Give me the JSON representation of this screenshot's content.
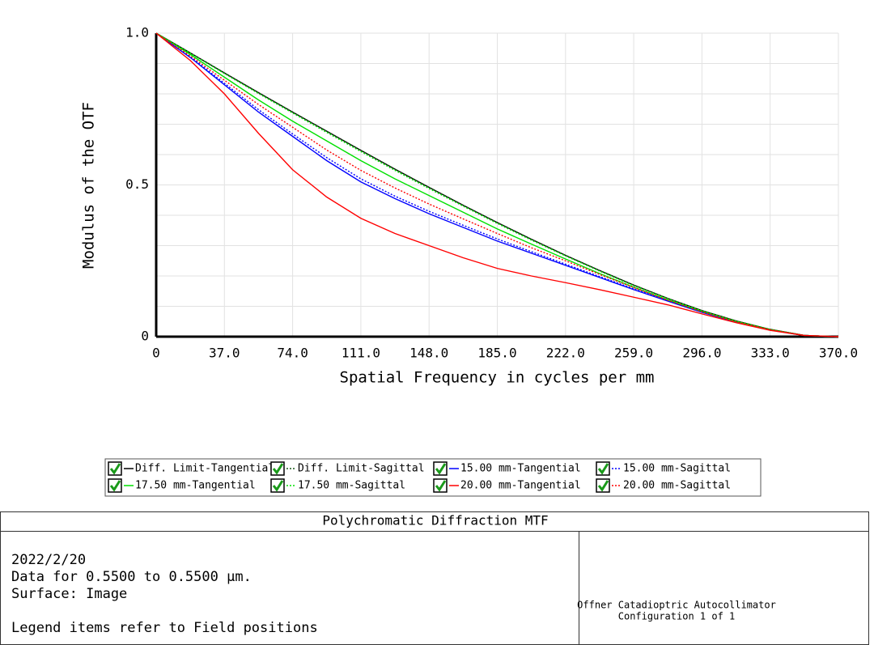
{
  "chart_data": {
    "type": "line",
    "x_label": "Spatial Frequency in cycles per mm",
    "y_label": "Modulus of the OTF",
    "x": [
      0,
      18.5,
      37,
      55.5,
      74,
      92.5,
      111,
      129.5,
      148,
      166.5,
      185,
      203.5,
      222,
      240.5,
      259,
      277.5,
      296,
      314.5,
      333,
      351.5,
      370
    ],
    "series": [
      {
        "name": "Diff. Limit-Tangential",
        "color": "#000000",
        "style": "solid",
        "values": [
          1,
          0.935,
          0.869,
          0.804,
          0.74,
          0.677,
          0.614,
          0.552,
          0.492,
          0.433,
          0.376,
          0.321,
          0.268,
          0.218,
          0.17,
          0.126,
          0.086,
          0.052,
          0.024,
          0.004,
          0
        ]
      },
      {
        "name": "Diff. Limit-Sagittal",
        "color": "#1a5a1a",
        "style": "dotted",
        "values": [
          1,
          0.935,
          0.869,
          0.804,
          0.74,
          0.677,
          0.614,
          0.552,
          0.492,
          0.433,
          0.376,
          0.321,
          0.268,
          0.218,
          0.17,
          0.126,
          0.086,
          0.052,
          0.024,
          0.004,
          0
        ]
      },
      {
        "name": "15.00 mm-Tangential",
        "color": "#0000ff",
        "style": "solid",
        "values": [
          1,
          0.92,
          0.83,
          0.74,
          0.66,
          0.58,
          0.51,
          0.455,
          0.405,
          0.36,
          0.315,
          0.275,
          0.235,
          0.195,
          0.155,
          0.117,
          0.08,
          0.048,
          0.022,
          0.004,
          0
        ]
      },
      {
        "name": "15.00 mm-Sagittal",
        "color": "#0000ff",
        "style": "dotted",
        "values": [
          1,
          0.922,
          0.835,
          0.748,
          0.668,
          0.59,
          0.52,
          0.463,
          0.413,
          0.367,
          0.322,
          0.28,
          0.239,
          0.198,
          0.158,
          0.119,
          0.081,
          0.049,
          0.022,
          0.004,
          0
        ]
      },
      {
        "name": "17.50 mm-Tangential",
        "color": "#00e000",
        "style": "solid",
        "values": [
          1,
          0.93,
          0.855,
          0.78,
          0.71,
          0.645,
          0.58,
          0.52,
          0.465,
          0.41,
          0.355,
          0.305,
          0.256,
          0.208,
          0.163,
          0.121,
          0.083,
          0.05,
          0.023,
          0.004,
          0
        ]
      },
      {
        "name": "17.50 mm-Sagittal",
        "color": "#00e000",
        "style": "dotted",
        "values": [
          1,
          0.934,
          0.867,
          0.801,
          0.737,
          0.673,
          0.61,
          0.548,
          0.488,
          0.43,
          0.373,
          0.318,
          0.266,
          0.216,
          0.168,
          0.125,
          0.085,
          0.051,
          0.024,
          0.004,
          0
        ]
      },
      {
        "name": "20.00 mm-Tangential",
        "color": "#ff0000",
        "style": "solid",
        "values": [
          1,
          0.91,
          0.8,
          0.67,
          0.55,
          0.46,
          0.39,
          0.34,
          0.3,
          0.26,
          0.225,
          0.2,
          0.178,
          0.155,
          0.13,
          0.105,
          0.075,
          0.046,
          0.021,
          0.004,
          0
        ]
      },
      {
        "name": "20.00 mm-Sagittal",
        "color": "#ff0000",
        "style": "dotted",
        "values": [
          1,
          0.925,
          0.845,
          0.765,
          0.69,
          0.615,
          0.548,
          0.49,
          0.437,
          0.388,
          0.34,
          0.293,
          0.25,
          0.205,
          0.162,
          0.12,
          0.082,
          0.049,
          0.023,
          0.004,
          0
        ]
      }
    ],
    "xlim": [
      0,
      370
    ],
    "xticks": [
      0,
      {
        "value": 37,
        "label": "37.0"
      },
      {
        "value": 74,
        "label": "74.0"
      },
      {
        "value": 111,
        "label": "111.0"
      },
      {
        "value": 148,
        "label": "148.0"
      },
      {
        "value": 185,
        "label": "185.0"
      },
      {
        "value": 222,
        "label": "222.0"
      },
      {
        "value": 259,
        "label": "259.0"
      },
      {
        "value": 296,
        "label": "296.0"
      },
      {
        "value": 333,
        "label": "333.0"
      },
      {
        "value": 370,
        "label": "370.0"
      }
    ],
    "ylim": [
      0,
      1
    ],
    "yticks": [
      0,
      0.5,
      {
        "value": 1,
        "label": "1.0"
      }
    ],
    "grid": true
  },
  "info_box": {
    "title": "Polychromatic Diffraction MTF",
    "lines": [
      "2022/2/20",
      "Data for 0.5500 to 0.5500 µm.",
      "Surface: Image",
      "",
      "Legend items refer to Field positions"
    ],
    "right": [
      "Offner Catadioptric Autocollimator",
      "Configuration 1 of 1"
    ]
  }
}
